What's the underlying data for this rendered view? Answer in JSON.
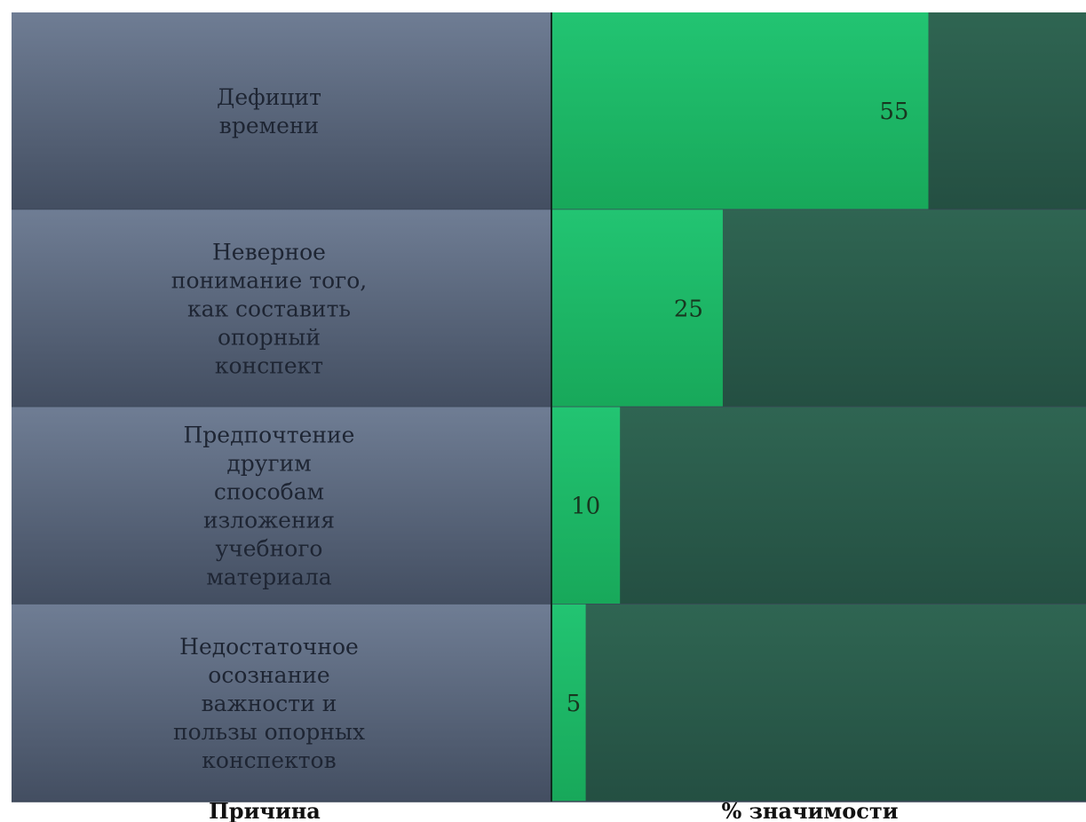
{
  "chart_data": {
    "type": "bar",
    "orientation": "horizontal",
    "categories": [
      "Дефицит времени",
      "Неверное понимание того, как составить опорный конспект",
      "Предпочтение другим способам изложения учебного материала",
      "Недостаточное осознание важности и пользы опорных конспектов"
    ],
    "category_lines": [
      [
        "Дефицит",
        "времени"
      ],
      [
        "Неверное",
        "понимание того,",
        "как составить",
        "опорный",
        "конспект"
      ],
      [
        "Предпочтение",
        "другим",
        "способам",
        "изложения",
        "учебного",
        "материала"
      ],
      [
        "Недостаточное",
        "осознание",
        "важности и",
        "пользы опорных",
        "конспектов"
      ]
    ],
    "values": [
      55,
      25,
      10,
      5
    ],
    "data_labels": [
      "55",
      "25",
      "10",
      "5"
    ],
    "xlim": [
      0,
      78
    ],
    "column_titles": {
      "category": "Причина",
      "value": "% значимости"
    },
    "colors": {
      "bar": "#1dbb68",
      "track": "#2b5f4d",
      "label_panel": "#5f6d84"
    }
  }
}
